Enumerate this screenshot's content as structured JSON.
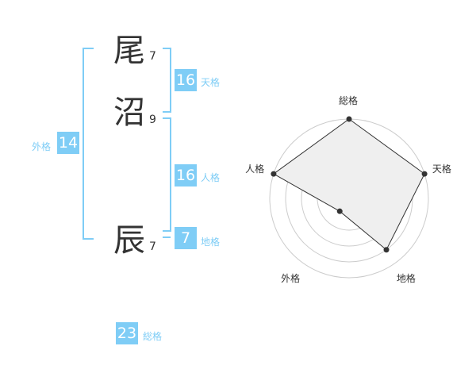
{
  "name": {
    "chars": [
      {
        "char": "尾",
        "strokes": "7"
      },
      {
        "char": "沼",
        "strokes": "9"
      },
      {
        "char": "辰",
        "strokes": "7"
      }
    ]
  },
  "kaku": {
    "tenkaku": {
      "label": "天格",
      "value": "16"
    },
    "jinkaku": {
      "label": "人格",
      "value": "16"
    },
    "chikaku": {
      "label": "地格",
      "value": "7"
    },
    "gaikaku": {
      "label": "外格",
      "value": "14"
    },
    "soukaku": {
      "label": "総格",
      "value": "23"
    }
  },
  "chart_data": {
    "type": "radar",
    "categories": [
      "総格",
      "天格",
      "地格",
      "外格",
      "人格"
    ],
    "values": [
      5,
      5,
      4,
      1,
      5
    ],
    "range": [
      0,
      5
    ],
    "rings": 5,
    "colors": {
      "fill": "#efefef",
      "line": "#333333",
      "grid": "#cccccc",
      "accent": "#7fcdf6"
    }
  }
}
